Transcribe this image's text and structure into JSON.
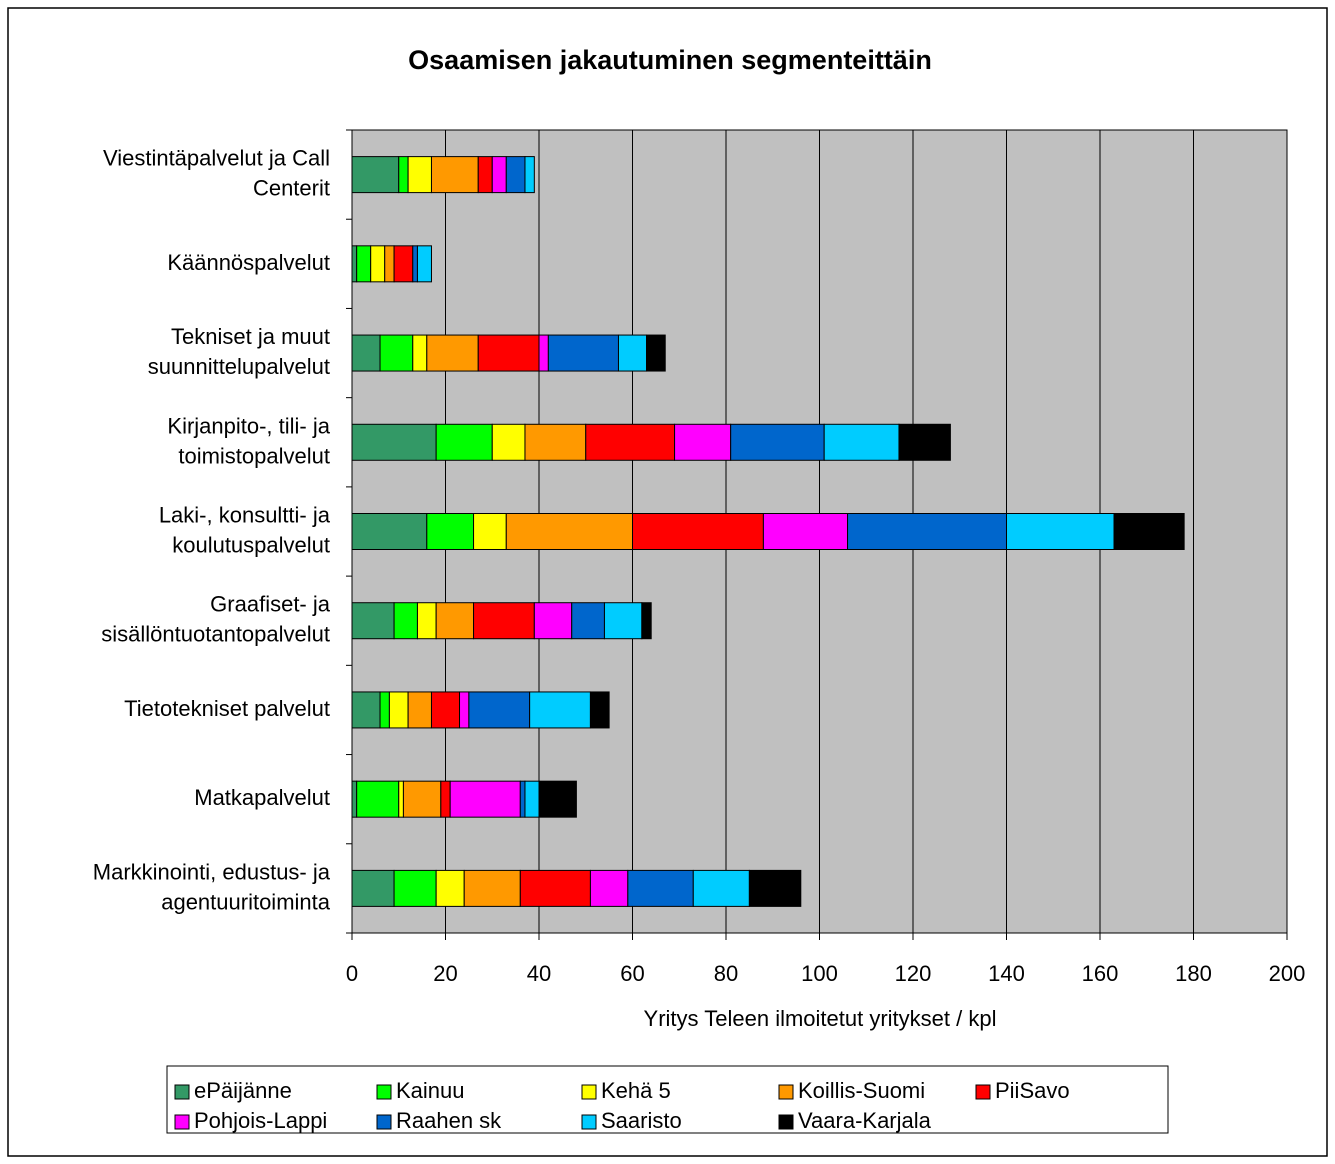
{
  "chart_data": {
    "type": "stacked_barh",
    "title": "Osaamisen jakautuminen segmenteittäin",
    "xlabel": "Yritys Teleen ilmoitetut yritykset / kpl",
    "categories": [
      [
        "Viestintäpalvelut ja Call",
        "Centerit"
      ],
      [
        "Käännöspalvelut"
      ],
      [
        "Tekniset ja muut",
        "suunnittelupalvelut"
      ],
      [
        "Kirjanpito-, tili- ja",
        "toimistopalvelut"
      ],
      [
        "Laki-, konsultti- ja",
        "koulutuspalvelut"
      ],
      [
        "Graafiset- ja",
        "sisällöntuotantopalvelut"
      ],
      [
        "Tietotekniset palvelut"
      ],
      [
        "Matkapalvelut"
      ],
      [
        "Markkinointi, edustus- ja",
        "agentuuritoiminta"
      ]
    ],
    "series": [
      {
        "name": "ePäijänne",
        "color": "#339966",
        "values": [
          10,
          1,
          6,
          18,
          16,
          9,
          6,
          1,
          9
        ]
      },
      {
        "name": "Kainuu",
        "color": "#00ff00",
        "values": [
          2,
          3,
          7,
          12,
          10,
          5,
          2,
          9,
          9
        ]
      },
      {
        "name": "Kehä 5",
        "color": "#ffff00",
        "values": [
          5,
          3,
          3,
          7,
          7,
          4,
          4,
          1,
          6
        ]
      },
      {
        "name": "Koillis-Suomi",
        "color": "#ff9900",
        "values": [
          10,
          2,
          11,
          13,
          27,
          8,
          5,
          8,
          12
        ]
      },
      {
        "name": "PiiSavo",
        "color": "#ff0000",
        "values": [
          3,
          4,
          13,
          19,
          28,
          13,
          6,
          2,
          15
        ]
      },
      {
        "name": "Pohjois-Lappi",
        "color": "#ff00ff",
        "values": [
          3,
          0,
          2,
          12,
          18,
          8,
          2,
          15,
          8
        ]
      },
      {
        "name": "Raahen sk",
        "color": "#0066cc",
        "values": [
          4,
          1,
          15,
          20,
          34,
          7,
          13,
          1,
          14
        ]
      },
      {
        "name": "Saaristo",
        "color": "#00ccff",
        "values": [
          2,
          3,
          6,
          16,
          23,
          8,
          13,
          3,
          12
        ]
      },
      {
        "name": "Vaara-Karjala",
        "color": "#000000",
        "values": [
          0,
          0,
          4,
          11,
          15,
          2,
          4,
          8,
          11
        ]
      }
    ],
    "xlim": [
      0,
      200
    ],
    "xticks": [
      0,
      20,
      40,
      60,
      80,
      100,
      120,
      140,
      160,
      180,
      200
    ],
    "grid": true
  }
}
